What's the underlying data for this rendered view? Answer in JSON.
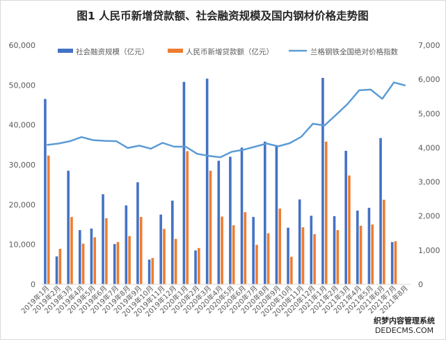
{
  "chart_data": {
    "type": "bar",
    "title": "图1 人民币新增贷款额、社会融资规模及国内钢材价格走势图",
    "categories": [
      "2019年1月",
      "2019年2月",
      "2019年3月",
      "2019年4月",
      "2019年5月",
      "2019年6月",
      "2019年7月",
      "2019年8月",
      "2019年9月",
      "2019年10月",
      "2019年11月",
      "2019年12月",
      "2020年1月",
      "2020年2月",
      "2020年3月",
      "2020年4月",
      "2020年5月",
      "2020年6月",
      "2020年7月",
      "2020年8月",
      "2020年9月",
      "2020年10月",
      "2020年11月",
      "2020年12月",
      "2021年1月",
      "2021年2月",
      "2021年3月",
      "2021年4月",
      "2021年5月",
      "2021年6月",
      "2021年7月",
      "2021年8月"
    ],
    "series": [
      {
        "name": "社会融资规模（亿元）",
        "axis": "left",
        "kind": "bar",
        "color": "#4472c4",
        "values": [
          46500,
          7000,
          28500,
          13600,
          14000,
          22600,
          10100,
          19800,
          25600,
          6200,
          17500,
          21000,
          50800,
          8500,
          51600,
          31000,
          32000,
          34300,
          16900,
          35800,
          34800,
          14200,
          21300,
          17200,
          51800,
          17100,
          33500,
          18500,
          19200,
          36700,
          10600,
          0
        ]
      },
      {
        "name": "人民币新增贷款额（亿元）",
        "axis": "left",
        "kind": "bar",
        "color": "#ed7d31",
        "values": [
          32300,
          8900,
          16900,
          10200,
          11800,
          16600,
          10600,
          12100,
          16900,
          6600,
          13900,
          11400,
          33400,
          9100,
          28500,
          17000,
          14800,
          18100,
          9900,
          12800,
          19000,
          6900,
          14300,
          12600,
          35800,
          13600,
          27300,
          14700,
          15000,
          21200,
          10800,
          0
        ]
      },
      {
        "name": "兰格钢铁全国绝对价格指数",
        "axis": "right",
        "kind": "line",
        "color": "#5b9bd5",
        "values": [
          4080,
          4120,
          4190,
          4310,
          4220,
          4200,
          4190,
          3990,
          4060,
          3970,
          4140,
          4030,
          4030,
          3820,
          3760,
          3720,
          3880,
          3940,
          4030,
          4120,
          4040,
          4130,
          4320,
          4700,
          4650,
          4960,
          5280,
          5680,
          5700,
          5430,
          5910,
          5820
        ]
      }
    ],
    "y_left": {
      "min": 0,
      "max": 60000,
      "ticks": [
        "0",
        "10,000",
        "20,000",
        "30,000",
        "40,000",
        "50,000",
        "60,000"
      ]
    },
    "y_right": {
      "min": 0,
      "max": 7000,
      "ticks": [
        "0",
        "1,000",
        "2,000",
        "3,000",
        "4,000",
        "5,000",
        "6,000",
        "7,000"
      ]
    },
    "legend_position": "top",
    "grid": false
  },
  "watermark": {
    "line1": "织梦内容管理系统",
    "line2": "DEDECMS.COM"
  }
}
